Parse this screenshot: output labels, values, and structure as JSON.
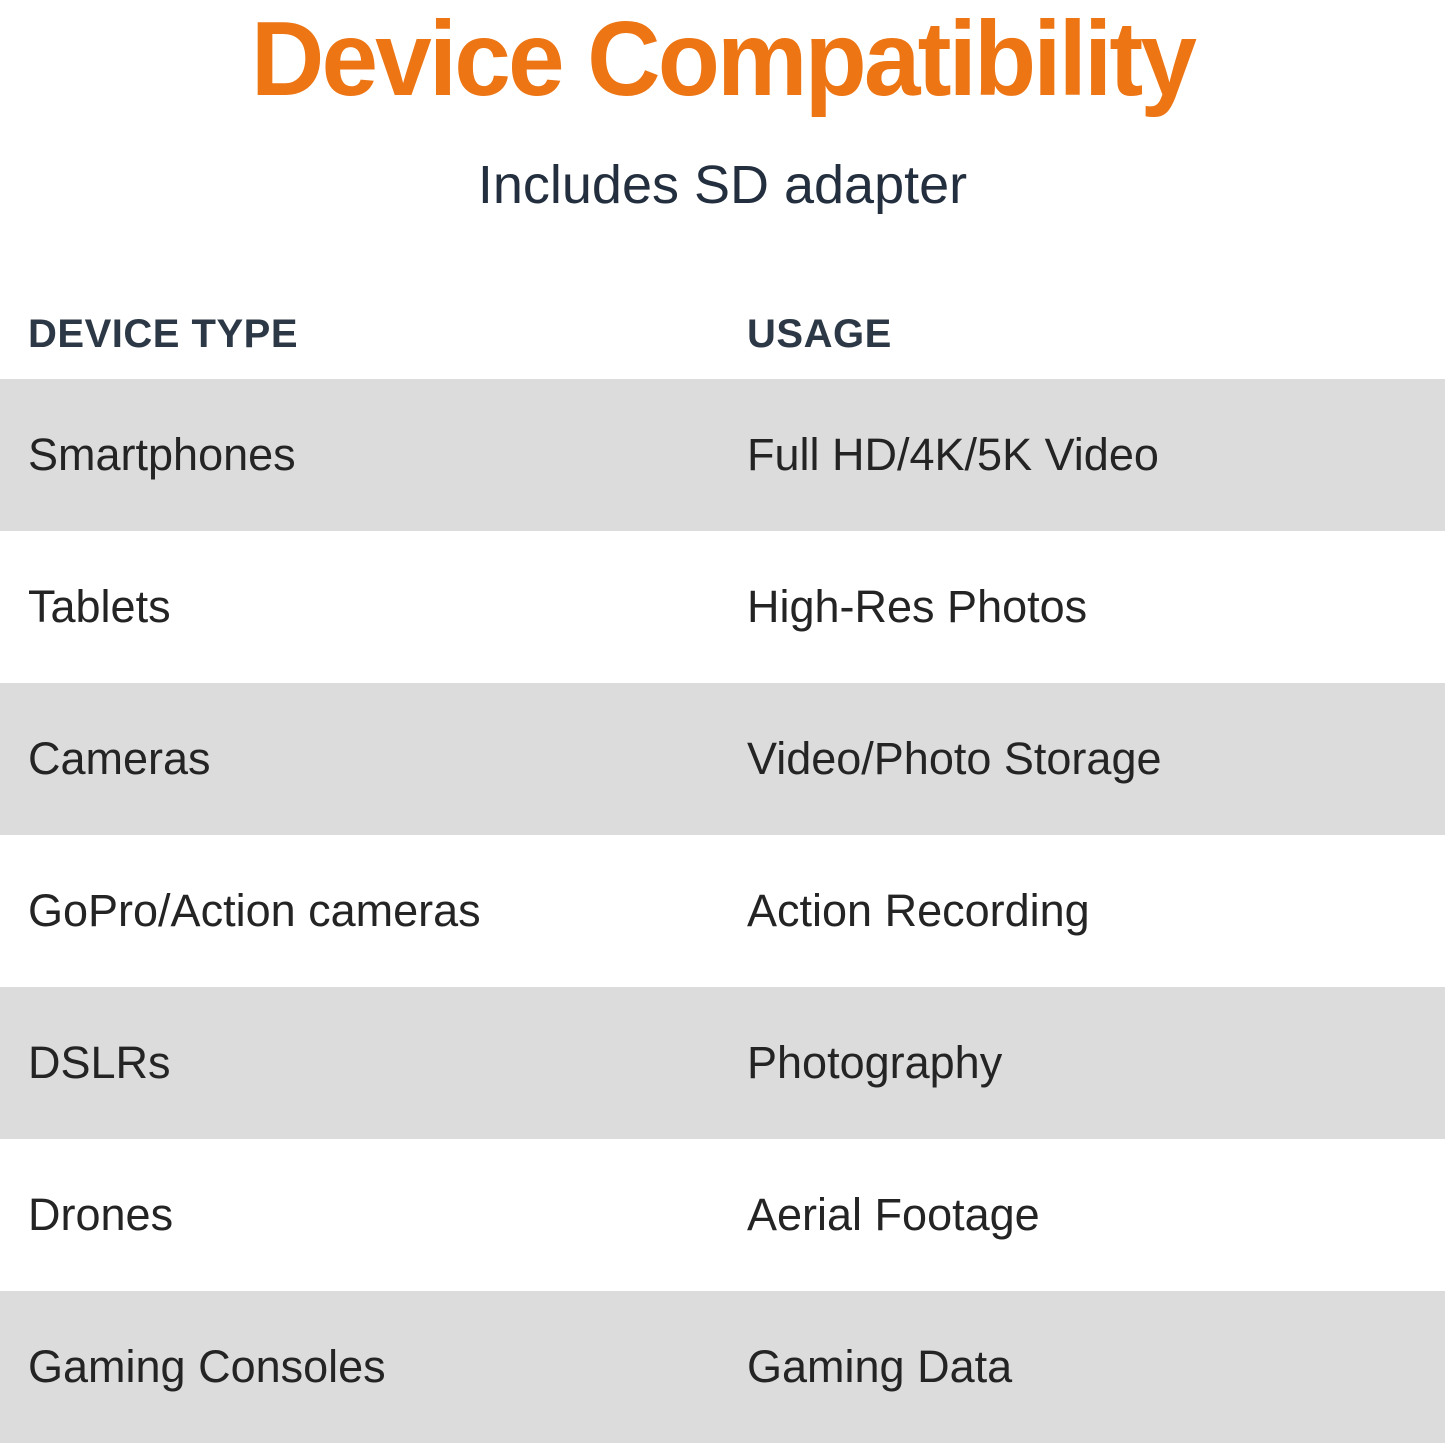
{
  "page": {
    "title": "Device Compatibility",
    "subtitle": "Includes SD adapter"
  },
  "table": {
    "headers": {
      "device": "DEVICE TYPE",
      "usage": "USAGE"
    },
    "rows": [
      {
        "device": "Smartphones",
        "usage": "Full HD/4K/5K Video"
      },
      {
        "device": "Tablets",
        "usage": "High-Res Photos"
      },
      {
        "device": "Cameras",
        "usage": "Video/Photo Storage"
      },
      {
        "device": "GoPro/Action cameras",
        "usage": "Action Recording"
      },
      {
        "device": "DSLRs",
        "usage": "Photography"
      },
      {
        "device": "Drones",
        "usage": "Aerial Footage"
      },
      {
        "device": "Gaming Consoles",
        "usage": "Gaming Data"
      }
    ]
  },
  "colors": {
    "accent_orange": "#ED7514",
    "heading_navy": "#232F3E",
    "header_text_navy": "#2C3846",
    "row_text": "#242424",
    "row_stripe_gray": "#DCDCDC",
    "background": "#FFFFFF"
  },
  "chart_data": {
    "type": "table",
    "title": "Device Compatibility",
    "subtitle": "Includes SD adapter",
    "columns": [
      "DEVICE TYPE",
      "USAGE"
    ],
    "rows": [
      [
        "Smartphones",
        "Full HD/4K/5K Video"
      ],
      [
        "Tablets",
        "High-Res Photos"
      ],
      [
        "Cameras",
        "Video/Photo Storage"
      ],
      [
        "GoPro/Action cameras",
        "Action Recording"
      ],
      [
        "DSLRs",
        "Photography"
      ],
      [
        "Drones",
        "Aerial Footage"
      ],
      [
        "Gaming Consoles",
        "Gaming Data"
      ]
    ],
    "layout_hints": {
      "striped_rows": true,
      "stripe_pattern": "odd rows gray starting with first data row",
      "header_style": "uppercase bold navy",
      "title_color": "#ED7514"
    }
  }
}
